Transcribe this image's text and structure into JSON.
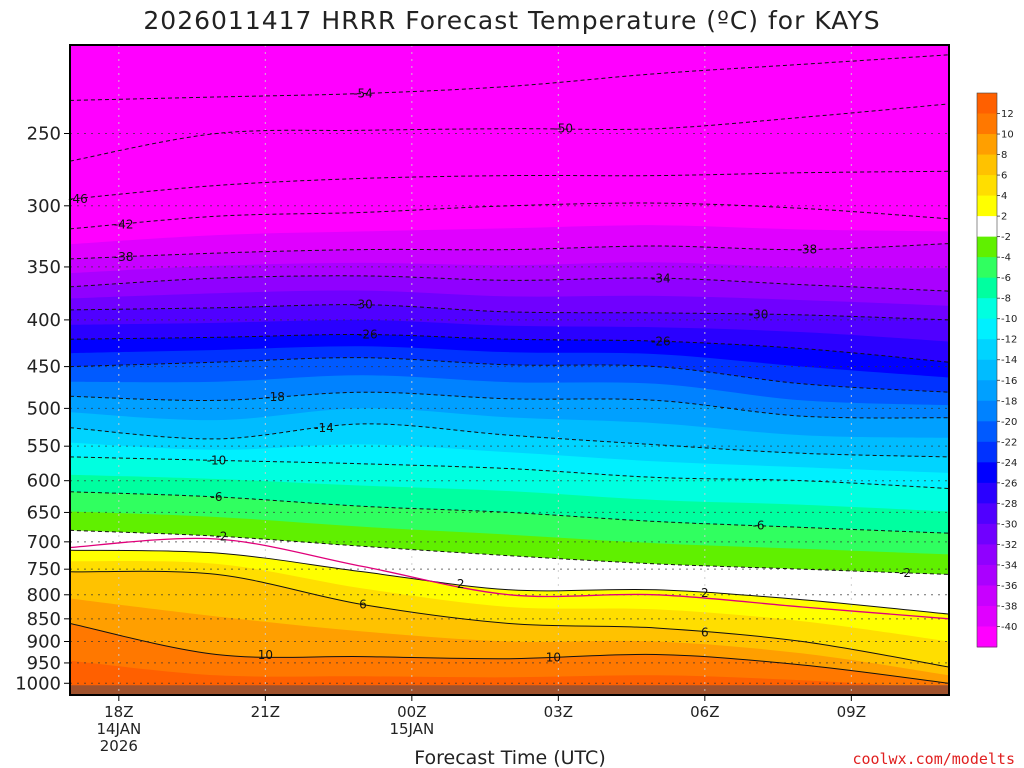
{
  "chart_data": {
    "type": "heatmap",
    "title": "2026011417 HRRR Forecast Temperature (ºC) for KAYS",
    "xlabel": "Forecast Time (UTC)",
    "ylabel": "",
    "x_ticks": [
      {
        "hour": 1,
        "lines": [
          "18Z",
          "14JAN",
          "2026"
        ]
      },
      {
        "hour": 4,
        "lines": [
          "21Z"
        ]
      },
      {
        "hour": 7,
        "lines": [
          "00Z",
          "15JAN"
        ]
      },
      {
        "hour": 10,
        "lines": [
          "03Z"
        ]
      },
      {
        "hour": 13,
        "lines": [
          "06Z"
        ]
      },
      {
        "hour": 16,
        "lines": [
          "09Z"
        ]
      }
    ],
    "xlim": [
      0,
      18
    ],
    "y_scale": "log-pressure (hPa)",
    "ylim": [
      1030,
      200
    ],
    "y_ticks": [
      250,
      300,
      350,
      400,
      450,
      500,
      550,
      600,
      650,
      700,
      750,
      800,
      850,
      900,
      950,
      1000
    ],
    "hours": [
      0,
      3,
      6,
      9,
      12,
      15,
      18
    ],
    "isotherms": [
      {
        "t": -54,
        "p": [
          230,
          228,
          226,
          222,
          215,
          210,
          205
        ]
      },
      {
        "t": -50,
        "p": [
          268,
          250,
          248,
          247,
          247,
          240,
          232
        ]
      },
      {
        "t": -46,
        "p": [
          295,
          285,
          280,
          278,
          278,
          276,
          275
        ]
      },
      {
        "t": -42,
        "p": [
          318,
          308,
          305,
          300,
          298,
          302,
          310
        ]
      },
      {
        "t": -38,
        "p": [
          343,
          338,
          335,
          335,
          332,
          335,
          330
        ]
      },
      {
        "t": -34,
        "p": [
          368,
          360,
          358,
          362,
          360,
          366,
          372
        ]
      },
      {
        "t": -30,
        "p": [
          390,
          388,
          385,
          392,
          393,
          395,
          400
        ]
      },
      {
        "t": -26,
        "p": [
          420,
          418,
          415,
          420,
          422,
          430,
          445
        ]
      },
      {
        "t": -22,
        "p": [
          450,
          445,
          440,
          448,
          450,
          470,
          480
        ]
      },
      {
        "t": -18,
        "p": [
          485,
          490,
          480,
          488,
          490,
          510,
          512
        ]
      },
      {
        "t": -14,
        "p": [
          525,
          540,
          520,
          535,
          548,
          560,
          565
        ]
      },
      {
        "t": -10,
        "p": [
          565,
          570,
          575,
          582,
          595,
          600,
          612
        ]
      },
      {
        "t": -6,
        "p": [
          617,
          625,
          640,
          650,
          665,
          675,
          685
        ]
      },
      {
        "t": -2,
        "p": [
          680,
          690,
          708,
          725,
          740,
          750,
          760
        ]
      },
      {
        "t": 2,
        "p": [
          715,
          720,
          755,
          790,
          790,
          810,
          840
        ]
      },
      {
        "t": 6,
        "p": [
          755,
          760,
          820,
          860,
          870,
          900,
          960
        ]
      },
      {
        "t": 10,
        "p": [
          860,
          930,
          935,
          940,
          930,
          955,
          1000
        ]
      },
      {
        "t": 14,
        "p": [
          1030,
          1030,
          1030,
          1030,
          1030,
          1030,
          1030
        ]
      }
    ],
    "contour_lines": [
      {
        "label": "-54",
        "label_hour": 6.0
      },
      {
        "label": "-50",
        "label_hour": 10.1
      },
      {
        "label": "-46",
        "label_hour": 0
      },
      {
        "label": "-42",
        "label_hour": 1.1
      },
      {
        "label": "-38",
        "label_hour": 1.1
      },
      {
        "label": "-38",
        "label_hour": 15.1
      },
      {
        "label": "-34",
        "label_hour": 12.1
      },
      {
        "label": "-30",
        "label_hour": 6.0
      },
      {
        "label": "-30",
        "label_hour": 14.1
      },
      {
        "label": "-26",
        "label_hour": 6.1
      },
      {
        "label": "-26",
        "label_hour": 12.1
      },
      {
        "label": "-18",
        "label_hour": 4.2
      },
      {
        "label": "-14",
        "label_hour": 5.2
      },
      {
        "label": "-10",
        "label_hour": 3.0
      },
      {
        "label": "-6",
        "label_hour": 3.0
      },
      {
        "label": "-6",
        "label_hour": 14.1
      },
      {
        "label": "-2",
        "label_hour": 3.1
      },
      {
        "label": "-2",
        "label_hour": 17.1
      },
      {
        "label": "2",
        "label_hour": 8.0
      },
      {
        "label": "2",
        "label_hour": 13.0
      },
      {
        "label": "6",
        "label_hour": 6.0
      },
      {
        "label": "6",
        "label_hour": 13.0
      },
      {
        "label": "10",
        "label_hour": 4.0
      },
      {
        "label": "10",
        "label_hour": 9.9
      }
    ],
    "freezing_line_hpa": [
      710,
      695,
      745,
      800,
      800,
      825,
      850
    ],
    "ground_hpa": 1005,
    "colorbar": {
      "levels": [
        -40,
        -38,
        -36,
        -34,
        -32,
        -30,
        -28,
        -26,
        -24,
        -22,
        -20,
        -18,
        -16,
        -14,
        -12,
        -10,
        -8,
        -6,
        -4,
        -2,
        2,
        4,
        6,
        8,
        10,
        12
      ],
      "labels": [
        "12",
        "10",
        "8",
        "6",
        "4",
        "2",
        "-2",
        "-4",
        "-6",
        "-8",
        "-10",
        "-12",
        "-14",
        "-16",
        "-18",
        "-20",
        "-22",
        "-24",
        "-26",
        "-28",
        "-30",
        "-32",
        "-34",
        "-36",
        "-38",
        "-40"
      ],
      "colors": [
        "#ff00ff",
        "#e000ff",
        "#c800ff",
        "#aa00ff",
        "#9000ff",
        "#7000ff",
        "#5000ff",
        "#2a00ff",
        "#0000ff",
        "#0032ff",
        "#005aff",
        "#0082ff",
        "#00a0ff",
        "#00bcff",
        "#00d4ff",
        "#00f0ff",
        "#00ffe0",
        "#00ffa0",
        "#30ff60",
        "#60f000",
        "#ffffff",
        "#ffff00",
        "#ffde00",
        "#ffc200",
        "#ff9f00",
        "#ff7800",
        "#ff6000"
      ]
    },
    "colors": {
      "ground": "#a0522d",
      "freezing_line": "#e0007a"
    }
  },
  "credit": "coolwx.com/modelts"
}
